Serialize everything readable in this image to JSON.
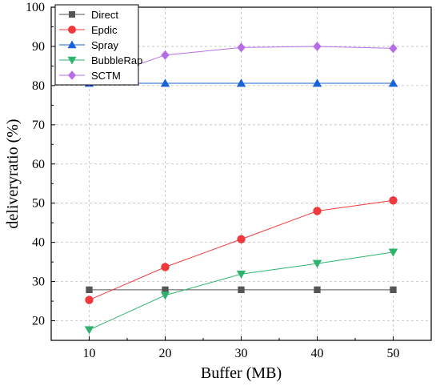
{
  "chart_data": {
    "type": "line",
    "title": "",
    "xlabel": "Buffer (MB)",
    "ylabel": "deliveryratio (%)",
    "x": [
      10,
      20,
      30,
      40,
      50
    ],
    "xticks": [
      10,
      20,
      30,
      40,
      50
    ],
    "yticks": [
      20,
      30,
      40,
      50,
      60,
      70,
      80,
      90,
      100
    ],
    "xlim": [
      5,
      55
    ],
    "ylim": [
      15,
      100
    ],
    "grid": true,
    "legend_position": "top-left",
    "series": [
      {
        "name": "Direct",
        "marker": "square",
        "color": "#555555",
        "values": [
          27.9,
          27.9,
          27.9,
          27.9,
          27.9
        ]
      },
      {
        "name": "Epdic",
        "marker": "circle",
        "color": "#f0393c",
        "values": [
          25.3,
          33.7,
          40.8,
          48.0,
          50.7
        ]
      },
      {
        "name": "Spray",
        "marker": "triangle-up",
        "color": "#1a63d6",
        "values": [
          80.6,
          80.6,
          80.6,
          80.6,
          80.6
        ]
      },
      {
        "name": "BubbleRap",
        "marker": "triangle-down",
        "color": "#2db36b",
        "values": [
          17.7,
          26.5,
          31.9,
          34.6,
          37.5
        ]
      },
      {
        "name": "SCTM",
        "marker": "diamond",
        "color": "#b66ee8",
        "values": [
          81.0,
          87.8,
          89.7,
          90.0,
          89.5
        ]
      }
    ]
  }
}
